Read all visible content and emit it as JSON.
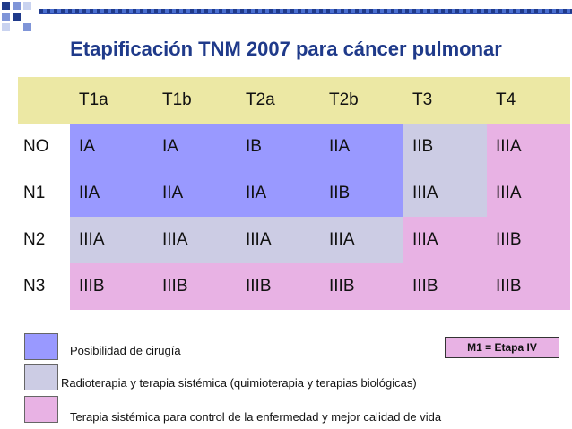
{
  "title": "Etapificación TNM 2007 para cáncer pulmonar",
  "table": {
    "headers": [
      "T1a",
      "T1b",
      "T2a",
      "T2b",
      "T3",
      "T4"
    ],
    "rows": [
      {
        "label": "NO",
        "cells": [
          "IA",
          "IA",
          "IB",
          "IIA",
          "IIB",
          "IIIA"
        ]
      },
      {
        "label": "N1",
        "cells": [
          "IIA",
          "IIA",
          "IIA",
          "IIB",
          "IIIA",
          "IIIA"
        ]
      },
      {
        "label": "N2",
        "cells": [
          "IIIA",
          "IIIA",
          "IIIA",
          "IIIA",
          "IIIA",
          "IIIB"
        ]
      },
      {
        "label": "N3",
        "cells": [
          "IIIB",
          "IIIB",
          "IIIB",
          "IIIB",
          "IIIB",
          "IIIB"
        ]
      }
    ]
  },
  "colors": {
    "header": "#ece8a4",
    "surgery": "#9999ff",
    "radiotherapy": "#cccce4",
    "systemic": "#e8b2e4",
    "title": "#1f3a8a"
  },
  "legend": [
    {
      "label": "Posibilidad de cirugía",
      "color": "#9999ff"
    },
    {
      "label": "Radioterapia y terapia sistémica (quimioterapia y terapias biológicas)",
      "color": "#cccce4"
    },
    {
      "label": "Terapia sistémica para control de la enfermedad y mejor calidad de vida",
      "color": "#e8b2e4"
    }
  ],
  "note": "M1 = Etapa IV"
}
